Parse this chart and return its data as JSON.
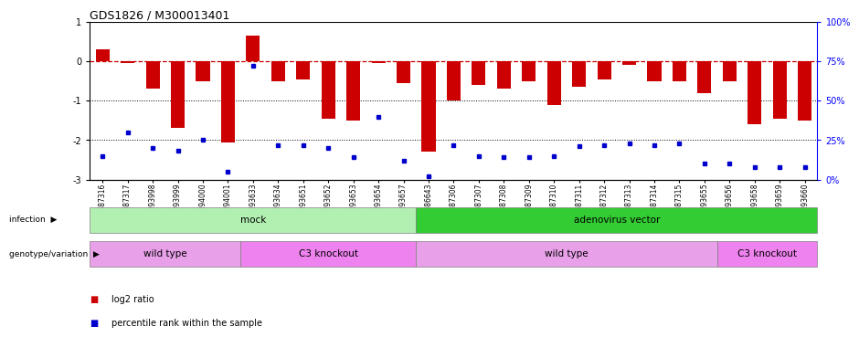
{
  "title": "GDS1826 / M300013401",
  "samples": [
    "GSM87316",
    "GSM87317",
    "GSM93998",
    "GSM93999",
    "GSM94000",
    "GSM94001",
    "GSM93633",
    "GSM93634",
    "GSM93651",
    "GSM93652",
    "GSM93653",
    "GSM93654",
    "GSM93657",
    "GSM86643",
    "GSM87306",
    "GSM87307",
    "GSM87308",
    "GSM87309",
    "GSM87310",
    "GSM87311",
    "GSM87312",
    "GSM87313",
    "GSM87314",
    "GSM87315",
    "GSM93655",
    "GSM93656",
    "GSM93658",
    "GSM93659",
    "GSM93660"
  ],
  "log2_ratio": [
    0.3,
    -0.05,
    -0.7,
    -1.7,
    -0.5,
    -2.05,
    0.65,
    -0.5,
    -0.45,
    -1.45,
    -1.5,
    -0.05,
    -0.55,
    -2.3,
    -1.0,
    -0.6,
    -0.7,
    -0.5,
    -1.1,
    -0.65,
    -0.45,
    -0.1,
    -0.5,
    -0.5,
    -0.8,
    -0.5,
    -1.6,
    -1.45,
    -1.5
  ],
  "percentile_rank": [
    15,
    30,
    20,
    18,
    25,
    5,
    72,
    22,
    22,
    20,
    14,
    40,
    12,
    2,
    22,
    15,
    14,
    14,
    15,
    21,
    22,
    23,
    22,
    23,
    10,
    10,
    8,
    8,
    8
  ],
  "infection_groups": [
    {
      "label": "mock",
      "start": 0,
      "end": 13,
      "color": "#b2f0b2"
    },
    {
      "label": "adenovirus vector",
      "start": 13,
      "end": 29,
      "color": "#33cc33"
    }
  ],
  "genotype_groups": [
    {
      "label": "wild type",
      "start": 0,
      "end": 6,
      "color": "#e8a0e8"
    },
    {
      "label": "C3 knockout",
      "start": 6,
      "end": 13,
      "color": "#ee82ee"
    },
    {
      "label": "wild type",
      "start": 13,
      "end": 25,
      "color": "#e8a0e8"
    },
    {
      "label": "C3 knockout",
      "start": 25,
      "end": 29,
      "color": "#ee82ee"
    }
  ],
  "bar_color": "#CC0000",
  "dot_color": "#0000CC",
  "ref_line_color": "#CC0000",
  "ylim_left": [
    -3.0,
    1.0
  ],
  "ylim_right": [
    0,
    100
  ],
  "right_ticks": [
    0,
    25,
    50,
    75,
    100
  ],
  "right_tick_labels": [
    "0%",
    "25%",
    "50%",
    "75%",
    "100%"
  ]
}
